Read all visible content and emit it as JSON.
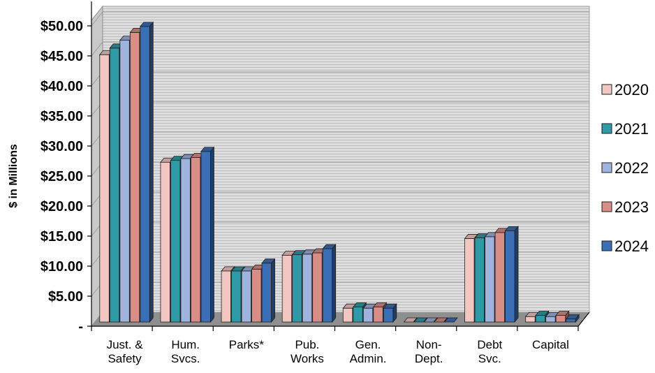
{
  "chart_data": {
    "type": "bar",
    "ylabel": "$ in Millions",
    "ylim": [
      0,
      50
    ],
    "y_ticks": [
      "-",
      "$5.00",
      "$10.00",
      "$15.00",
      "$20.00",
      "$25.00",
      "$30.00",
      "$35.00",
      "$40.00",
      "$45.00",
      "$50.00"
    ],
    "y_tick_values": [
      0,
      5,
      10,
      15,
      20,
      25,
      30,
      35,
      40,
      45,
      50
    ],
    "categories": [
      [
        "Just. &",
        "Safety"
      ],
      [
        "Hum.",
        "Svcs."
      ],
      [
        "Parks*"
      ],
      [
        "Pub.",
        "Works"
      ],
      [
        "Gen.",
        "Admin."
      ],
      [
        "Non-",
        "Dept."
      ],
      [
        "Debt",
        "Svc."
      ],
      [
        "Capital"
      ]
    ],
    "series": [
      {
        "name": "2020",
        "color": "#f2c7c2",
        "values": [
          45.2,
          27.3,
          9.2,
          11.8,
          3.0,
          0.1,
          14.6,
          1.6
        ]
      },
      {
        "name": "2021",
        "color": "#2f9aa6",
        "values": [
          46.3,
          27.6,
          9.2,
          11.9,
          3.2,
          0.1,
          14.7,
          1.8
        ]
      },
      {
        "name": "2022",
        "color": "#9fb3de",
        "values": [
          47.6,
          27.9,
          9.2,
          12.0,
          3.0,
          0.1,
          14.9,
          1.6
        ]
      },
      {
        "name": "2023",
        "color": "#d88d87",
        "values": [
          48.9,
          28.1,
          9.5,
          12.2,
          3.2,
          0.1,
          15.6,
          1.8
        ]
      },
      {
        "name": "2024",
        "color": "#3a6fb5",
        "values": [
          49.9,
          29.1,
          10.5,
          12.9,
          3.0,
          0.1,
          15.9,
          1.2
        ]
      }
    ],
    "legend_position": "right",
    "grid": true
  }
}
